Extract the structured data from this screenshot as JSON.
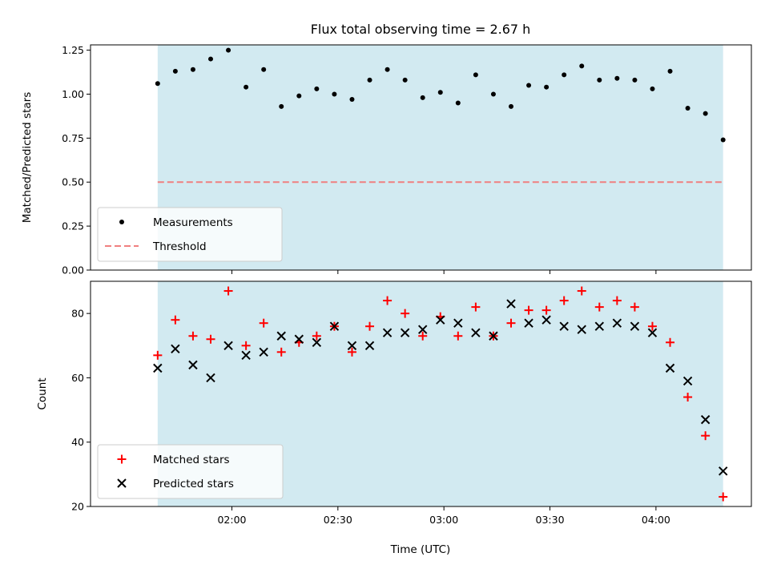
{
  "title": "Flux total observing time = 2.67 h",
  "xlabel": "Time (UTC)",
  "x_tick_labels": [
    "02:00",
    "02:30",
    "03:00",
    "03:30",
    "04:00"
  ],
  "colors": {
    "shade": "#add8e6",
    "measurement": "#000000",
    "threshold": "#f08080",
    "matched": "#ff0000",
    "predicted": "#000000"
  },
  "legend_top": {
    "measurements": "Measurements",
    "threshold": "Threshold"
  },
  "legend_bottom": {
    "matched": "Matched stars",
    "predicted": "Predicted stars"
  },
  "chart_data": [
    {
      "type": "scatter",
      "ylabel": "Matched/Predicted stars",
      "ylim": [
        0.0,
        1.28
      ],
      "yticks": [
        "0.00",
        "0.25",
        "0.50",
        "0.75",
        "1.00",
        "1.25"
      ],
      "legend_position": "lower-left",
      "shaded_span": [
        "01:39",
        "04:19"
      ],
      "threshold": 0.5,
      "series": [
        {
          "name": "Measurements",
          "x": [
            "01:39",
            "01:44",
            "01:49",
            "01:54",
            "01:59",
            "02:04",
            "02:09",
            "02:14",
            "02:19",
            "02:24",
            "02:29",
            "02:34",
            "02:39",
            "02:44",
            "02:49",
            "02:54",
            "02:59",
            "03:04",
            "03:09",
            "03:14",
            "03:19",
            "03:24",
            "03:29",
            "03:34",
            "03:39",
            "03:44",
            "03:49",
            "03:54",
            "03:59",
            "04:04",
            "04:09",
            "04:14",
            "04:19"
          ],
          "values": [
            1.06,
            1.13,
            1.14,
            1.2,
            1.25,
            1.04,
            1.14,
            0.93,
            0.99,
            1.03,
            1.0,
            0.97,
            1.08,
            1.14,
            1.08,
            0.98,
            1.01,
            0.95,
            1.11,
            1.0,
            0.93,
            1.05,
            1.04,
            1.11,
            1.16,
            1.08,
            1.09,
            1.08,
            1.03,
            1.13,
            0.92,
            0.89,
            0.74
          ]
        }
      ]
    },
    {
      "type": "scatter",
      "ylabel": "Count",
      "ylim": [
        20,
        90
      ],
      "yticks": [
        "20",
        "40",
        "60",
        "80"
      ],
      "legend_position": "lower-left",
      "shaded_span": [
        "01:39",
        "04:19"
      ],
      "series": [
        {
          "name": "Matched stars",
          "x": [
            "01:39",
            "01:44",
            "01:49",
            "01:54",
            "01:59",
            "02:04",
            "02:09",
            "02:14",
            "02:19",
            "02:24",
            "02:29",
            "02:34",
            "02:39",
            "02:44",
            "02:49",
            "02:54",
            "02:59",
            "03:04",
            "03:09",
            "03:14",
            "03:19",
            "03:24",
            "03:29",
            "03:34",
            "03:39",
            "03:44",
            "03:49",
            "03:54",
            "03:59",
            "04:04",
            "04:09",
            "04:14",
            "04:19"
          ],
          "values": [
            67,
            78,
            73,
            72,
            87,
            70,
            77,
            68,
            71,
            73,
            76,
            68,
            76,
            84,
            80,
            73,
            79,
            73,
            82,
            73,
            77,
            81,
            81,
            84,
            87,
            82,
            84,
            82,
            76,
            71,
            54,
            42,
            23
          ]
        },
        {
          "name": "Predicted stars",
          "x": [
            "01:39",
            "01:44",
            "01:49",
            "01:54",
            "01:59",
            "02:04",
            "02:09",
            "02:14",
            "02:19",
            "02:24",
            "02:29",
            "02:34",
            "02:39",
            "02:44",
            "02:49",
            "02:54",
            "02:59",
            "03:04",
            "03:09",
            "03:14",
            "03:19",
            "03:24",
            "03:29",
            "03:34",
            "03:39",
            "03:44",
            "03:49",
            "03:54",
            "03:59",
            "04:04",
            "04:09",
            "04:14",
            "04:19"
          ],
          "values": [
            63,
            69,
            64,
            60,
            70,
            67,
            68,
            73,
            72,
            71,
            76,
            70,
            70,
            74,
            74,
            75,
            78,
            77,
            74,
            73,
            83,
            77,
            78,
            76,
            75,
            76,
            77,
            76,
            74,
            63,
            59,
            47,
            31
          ]
        }
      ]
    }
  ]
}
